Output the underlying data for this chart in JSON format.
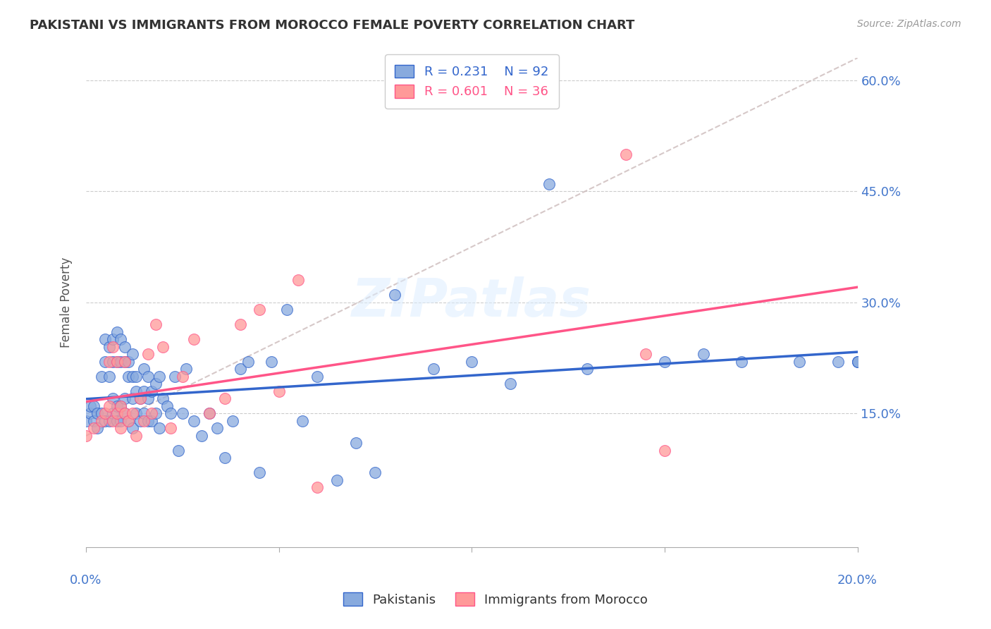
{
  "title": "PAKISTANI VS IMMIGRANTS FROM MOROCCO FEMALE POVERTY CORRELATION CHART",
  "source": "Source: ZipAtlas.com",
  "ylabel": "Female Poverty",
  "xlim": [
    0.0,
    0.2
  ],
  "ylim": [
    -0.03,
    0.63
  ],
  "color_blue": "#88AADE",
  "color_pink": "#FF9999",
  "trendline_blue": "#3366CC",
  "trendline_pink": "#FF5588",
  "trendline_dashed": "#CCBBBB",
  "watermark": "ZIPatlas",
  "pakistanis_x": [
    0.0,
    0.001,
    0.001,
    0.002,
    0.002,
    0.003,
    0.003,
    0.004,
    0.004,
    0.005,
    0.005,
    0.005,
    0.006,
    0.006,
    0.006,
    0.007,
    0.007,
    0.007,
    0.007,
    0.008,
    0.008,
    0.008,
    0.008,
    0.009,
    0.009,
    0.009,
    0.009,
    0.01,
    0.01,
    0.01,
    0.01,
    0.011,
    0.011,
    0.011,
    0.012,
    0.012,
    0.012,
    0.012,
    0.013,
    0.013,
    0.013,
    0.014,
    0.014,
    0.015,
    0.015,
    0.015,
    0.016,
    0.016,
    0.016,
    0.017,
    0.017,
    0.018,
    0.018,
    0.019,
    0.019,
    0.02,
    0.021,
    0.022,
    0.023,
    0.024,
    0.025,
    0.026,
    0.028,
    0.03,
    0.032,
    0.034,
    0.036,
    0.038,
    0.04,
    0.042,
    0.045,
    0.048,
    0.052,
    0.056,
    0.06,
    0.065,
    0.07,
    0.075,
    0.08,
    0.09,
    0.1,
    0.11,
    0.12,
    0.13,
    0.15,
    0.16,
    0.17,
    0.185,
    0.195,
    0.2,
    0.2,
    0.2
  ],
  "pakistanis_y": [
    0.14,
    0.15,
    0.16,
    0.14,
    0.16,
    0.13,
    0.15,
    0.15,
    0.2,
    0.14,
    0.22,
    0.25,
    0.14,
    0.2,
    0.24,
    0.15,
    0.17,
    0.22,
    0.25,
    0.14,
    0.16,
    0.22,
    0.26,
    0.14,
    0.16,
    0.22,
    0.25,
    0.15,
    0.17,
    0.22,
    0.24,
    0.14,
    0.2,
    0.22,
    0.13,
    0.17,
    0.2,
    0.23,
    0.15,
    0.18,
    0.2,
    0.14,
    0.17,
    0.15,
    0.18,
    0.21,
    0.14,
    0.17,
    0.2,
    0.14,
    0.18,
    0.15,
    0.19,
    0.13,
    0.2,
    0.17,
    0.16,
    0.15,
    0.2,
    0.1,
    0.15,
    0.21,
    0.14,
    0.12,
    0.15,
    0.13,
    0.09,
    0.14,
    0.21,
    0.22,
    0.07,
    0.22,
    0.29,
    0.14,
    0.2,
    0.06,
    0.11,
    0.07,
    0.31,
    0.21,
    0.22,
    0.19,
    0.46,
    0.21,
    0.22,
    0.23,
    0.22,
    0.22,
    0.22,
    0.22,
    0.22,
    0.22
  ],
  "morocco_x": [
    0.0,
    0.002,
    0.004,
    0.005,
    0.006,
    0.006,
    0.007,
    0.007,
    0.008,
    0.008,
    0.009,
    0.009,
    0.01,
    0.01,
    0.011,
    0.012,
    0.013,
    0.014,
    0.015,
    0.016,
    0.017,
    0.018,
    0.02,
    0.022,
    0.025,
    0.028,
    0.032,
    0.036,
    0.04,
    0.045,
    0.05,
    0.055,
    0.06,
    0.14,
    0.145,
    0.15
  ],
  "morocco_y": [
    0.12,
    0.13,
    0.14,
    0.15,
    0.16,
    0.22,
    0.14,
    0.24,
    0.15,
    0.22,
    0.13,
    0.16,
    0.15,
    0.22,
    0.14,
    0.15,
    0.12,
    0.17,
    0.14,
    0.23,
    0.15,
    0.27,
    0.24,
    0.13,
    0.2,
    0.25,
    0.15,
    0.17,
    0.27,
    0.29,
    0.18,
    0.33,
    0.05,
    0.5,
    0.23,
    0.1
  ]
}
